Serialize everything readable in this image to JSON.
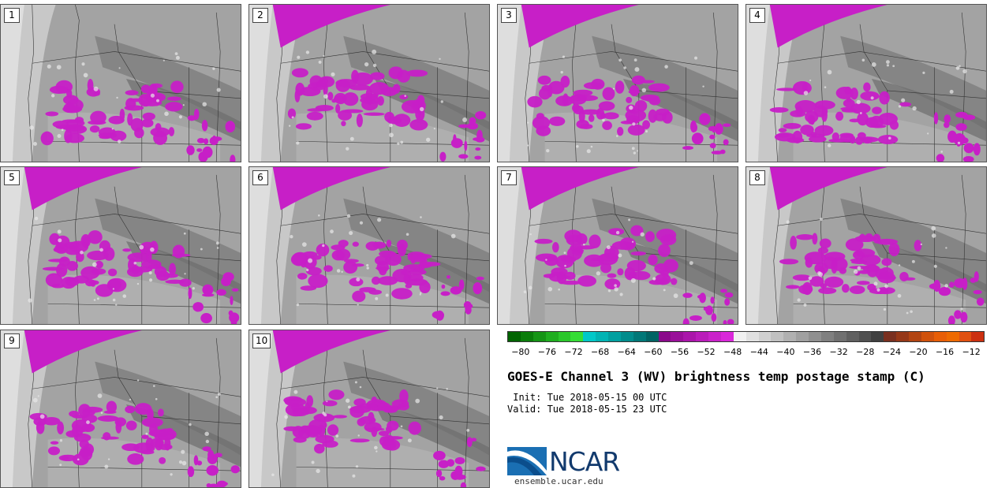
{
  "panels": [
    {
      "label": "1"
    },
    {
      "label": "2"
    },
    {
      "label": "3"
    },
    {
      "label": "4"
    },
    {
      "label": "5"
    },
    {
      "label": "6"
    },
    {
      "label": "7"
    },
    {
      "label": "8"
    },
    {
      "label": "9"
    },
    {
      "label": "10"
    }
  ],
  "colorbar": {
    "colors": [
      "#006400",
      "#0a7d0a",
      "#159515",
      "#1fae1f",
      "#2ac72a",
      "#35dd35",
      "#00c8c8",
      "#00b4b4",
      "#00a0a0",
      "#008c8c",
      "#007878",
      "#006464",
      "#8b0a8b",
      "#9a109a",
      "#aa16aa",
      "#ba1cba",
      "#ca22ca",
      "#da28da",
      "#f0f0f0",
      "#e0e0e0",
      "#d0d0d0",
      "#c0c0c0",
      "#b0b0b0",
      "#a0a0a0",
      "#909090",
      "#808080",
      "#707070",
      "#606060",
      "#505050",
      "#404040",
      "#7a3020",
      "#963818",
      "#b24512",
      "#d0520c",
      "#e85e06",
      "#ee6a00",
      "#e05010",
      "#cc3010"
    ],
    "tick_labels": [
      "−80",
      "−76",
      "−72",
      "−68",
      "−64",
      "−60",
      "−56",
      "−52",
      "−48",
      "−44",
      "−40",
      "−36",
      "−32",
      "−28",
      "−24",
      "−20",
      "−16",
      "−12"
    ],
    "range": [
      -82,
      -10
    ]
  },
  "title": "GOES-E Channel 3 (WV) brightness temp postage stamp (C)",
  "init": " Init: Tue 2018-05-15 00 UTC",
  "valid": "Valid: Tue 2018-05-15 23 UTC",
  "logo": "NCAR",
  "website": "ensemble.ucar.edu"
}
